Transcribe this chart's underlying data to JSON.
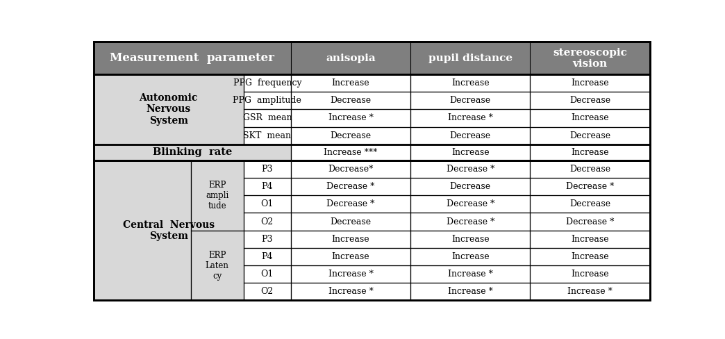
{
  "header_bg": "#7f7f7f",
  "header_text_color": "#ffffff",
  "subheader_bg": "#d8d8d8",
  "row_bg_white": "#ffffff",
  "border_color": "#000000",
  "text_color": "#000000",
  "col_props": [
    0.175,
    0.095,
    0.085,
    0.215,
    0.215,
    0.215
  ],
  "header_labels": [
    "Measurement  parameter",
    "anisopia",
    "pupil distance",
    "stereoscopic\nvision"
  ],
  "col2_labels": [
    "PPG  frequency",
    "PPG  amplitude",
    "GSR  mean",
    "SKT  mean",
    "",
    "P3",
    "P4",
    "O1",
    "O2",
    "P3",
    "P4",
    "O1",
    "O2"
  ],
  "col3_data": [
    "Increase",
    "Decrease",
    "Increase *",
    "Decrease",
    "Increase ***",
    "Decrease*",
    "Decrease *",
    "Decrease *",
    "Decrease",
    "Increase",
    "Increase",
    "Increase *",
    "Increase *"
  ],
  "col4_data": [
    "Increase",
    "Decrease",
    "Increase *",
    "Decrease",
    "Increase",
    "Decrease *",
    "Decrease",
    "Decrease *",
    "Decrease *",
    "Increase",
    "Increase",
    "Increase *",
    "Increase *"
  ],
  "col5_data": [
    "Increase",
    "Decrease",
    "Increase",
    "Decrease",
    "Increase",
    "Decrease",
    "Decrease *",
    "Decrease",
    "Decrease *",
    "Increase",
    "Increase",
    "Increase",
    "Increase *"
  ]
}
